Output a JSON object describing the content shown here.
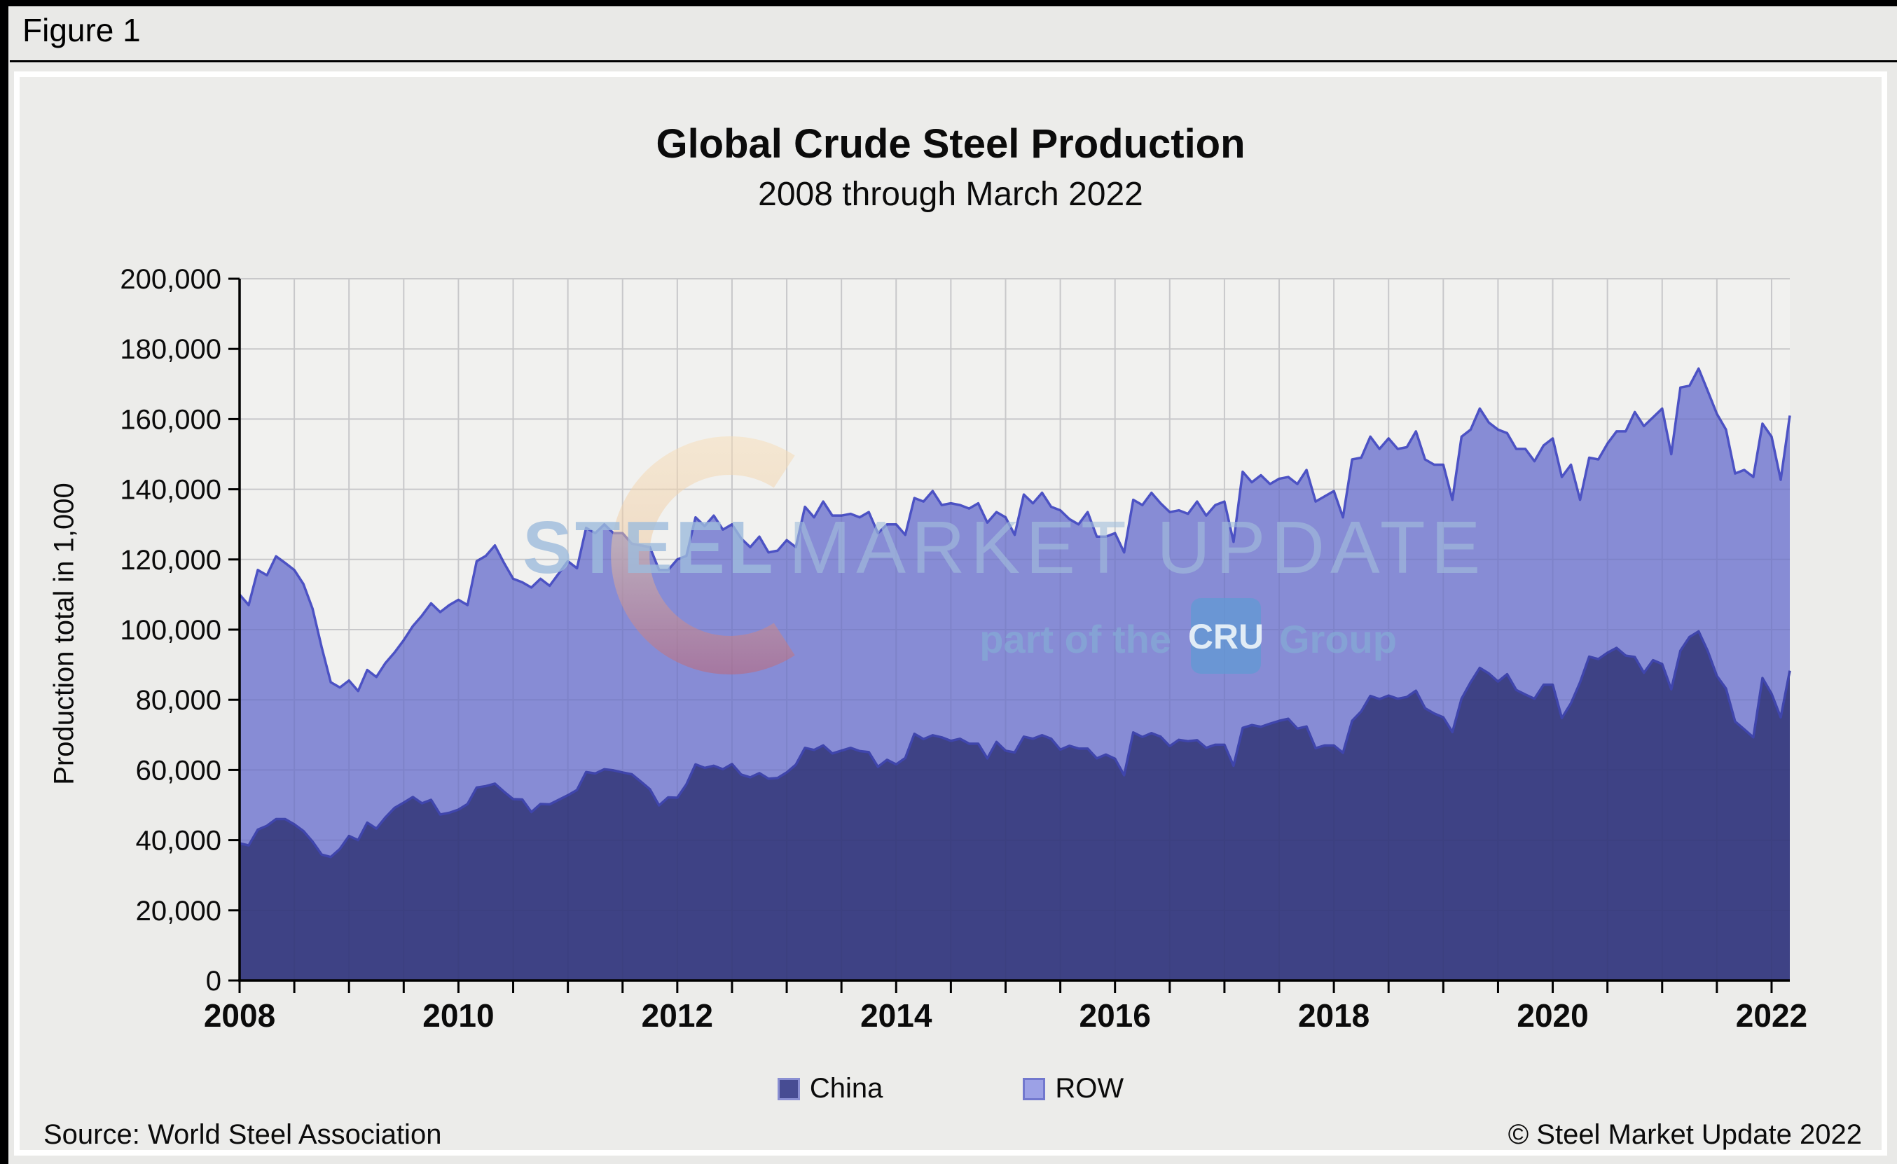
{
  "figure_label": "Figure 1",
  "header": {
    "title": "Global Crude Steel Production",
    "subtitle": "2008 through March 2022"
  },
  "watermark": {
    "brand_bold": "STEEL",
    "brand_light": "MARKET UPDATE",
    "tagline_prefix": "part of the",
    "cru_label": "CRU",
    "tagline_suffix": "Group"
  },
  "legend": {
    "items": [
      {
        "label": "China",
        "color": "#474C93",
        "border": "#8A8FD2"
      },
      {
        "label": "ROW",
        "color": "#9CA1E6",
        "border": "#7278CE"
      }
    ]
  },
  "footer": {
    "source": "Source: World Steel Association",
    "copyright": "© Steel Market Update 2022"
  },
  "chart_data": {
    "type": "area",
    "stacked": true,
    "title": "Global Crude Steel Production",
    "subtitle": "2008 through March 2022",
    "ylabel": "Production total in 1,000",
    "unit": "thousand tonnes per month",
    "months_start": "2008-01",
    "months_end": "2022-03",
    "ylim": [
      0,
      200000
    ],
    "y_tick_step": 20000,
    "y_ticks": [
      "0",
      "20,000",
      "40,000",
      "60,000",
      "80,000",
      "100,000",
      "120,000",
      "140,000",
      "160,000",
      "180,000",
      "200,000"
    ],
    "x_tick_labels": [
      "2008",
      "2010",
      "2012",
      "2014",
      "2016",
      "2018",
      "2020",
      "2022"
    ],
    "x_tick_every_months": 6,
    "grid": true,
    "legend_position": "bottom",
    "colors": {
      "plot_background": "#F1F1EF",
      "gridline": "#D8D8D6",
      "axis": "#000000"
    },
    "series": [
      {
        "name": "China",
        "color": "#3E4285",
        "line_color": "#3F45AC",
        "values": [
          39100,
          38500,
          43000,
          44100,
          46000,
          46000,
          44500,
          42600,
          39600,
          35900,
          35200,
          37500,
          41200,
          40000,
          45000,
          43300,
          46500,
          49200,
          50700,
          52300,
          50500,
          51500,
          47300,
          47800,
          48700,
          50300,
          55000,
          55400,
          56100,
          53800,
          51700,
          51600,
          48000,
          50300,
          50200,
          51500,
          52800,
          54300,
          59400,
          59000,
          60200,
          59900,
          59300,
          58800,
          56700,
          54500,
          49900,
          52200,
          52100,
          55900,
          61600,
          60600,
          61200,
          60200,
          61700,
          58700,
          57900,
          59100,
          57500,
          57700,
          59300,
          61500,
          66300,
          65700,
          67000,
          64700,
          65500,
          66300,
          65400,
          65100,
          60900,
          62900,
          61600,
          63400,
          70300,
          68800,
          69900,
          69300,
          68300,
          68900,
          67500,
          67500,
          63300,
          68000,
          65500,
          65000,
          69500,
          68900,
          69900,
          68900,
          65800,
          66900,
          66100,
          66100,
          63300,
          64400,
          63200,
          58500,
          70700,
          69400,
          70500,
          69500,
          66800,
          68600,
          68200,
          68500,
          66300,
          67200,
          67200,
          61200,
          72000,
          72800,
          72300,
          73200,
          74000,
          74600,
          71800,
          72400,
          66200,
          67000,
          67000,
          64900,
          74000,
          76700,
          81100,
          80200,
          81200,
          80300,
          80800,
          82600,
          77600,
          76100,
          75000,
          70800,
          80300,
          85000,
          89100,
          87500,
          85200,
          87300,
          82800,
          81500,
          80300,
          84300,
          84300,
          74800,
          79000,
          85000,
          92300,
          91600,
          93400,
          94800,
          92600,
          92200,
          87700,
          91300,
          90200,
          83000,
          94000,
          97900,
          99500,
          93900,
          86800,
          83200,
          73800,
          71600,
          69300,
          86200,
          81700,
          75000,
          88300
        ]
      },
      {
        "name": "ROW",
        "color": "#878CD5",
        "line_color": "#4C52C4",
        "values": [
          70900,
          68500,
          74000,
          71400,
          74900,
          73000,
          72500,
          70400,
          66400,
          59100,
          49800,
          46000,
          44300,
          42500,
          43500,
          43200,
          44000,
          44300,
          46300,
          48700,
          53500,
          56000,
          57700,
          59200,
          59800,
          56700,
          64500,
          65600,
          67900,
          65200,
          62800,
          61900,
          64000,
          64200,
          62300,
          64500,
          66700,
          63200,
          69600,
          68500,
          69800,
          67600,
          68200,
          65700,
          67300,
          69000,
          67100,
          64800,
          67900,
          65100,
          70400,
          68900,
          71300,
          68300,
          68300,
          67300,
          65600,
          67400,
          64500,
          64800,
          66200,
          62000,
          68700,
          66300,
          69500,
          67800,
          67000,
          66700,
          66600,
          68400,
          66600,
          67100,
          68400,
          63600,
          67200,
          67700,
          69600,
          66200,
          67700,
          66600,
          67000,
          68500,
          67200,
          65500,
          66500,
          62000,
          69000,
          67100,
          69100,
          66100,
          68200,
          64600,
          63900,
          67400,
          63200,
          62100,
          64300,
          63500,
          66300,
          66100,
          68500,
          66500,
          66700,
          65400,
          64800,
          68000,
          66200,
          68300,
          69300,
          63800,
          73000,
          69200,
          71700,
          68300,
          69000,
          68900,
          69700,
          73100,
          70300,
          71000,
          72500,
          67100,
          74500,
          72300,
          73900,
          71300,
          73300,
          71200,
          71200,
          73900,
          70900,
          70900,
          72000,
          66200,
          74700,
          72000,
          73900,
          71500,
          71800,
          68700,
          68700,
          70000,
          67700,
          68200,
          70200,
          68700,
          68000,
          52000,
          56700,
          56900,
          59600,
          61700,
          63900,
          69800,
          70300,
          69200,
          72800,
          67000,
          75000,
          71600,
          74900,
          74100,
          74700,
          73800,
          70700,
          73900,
          74200,
          72500,
          73300,
          67700,
          72700
        ]
      }
    ]
  }
}
